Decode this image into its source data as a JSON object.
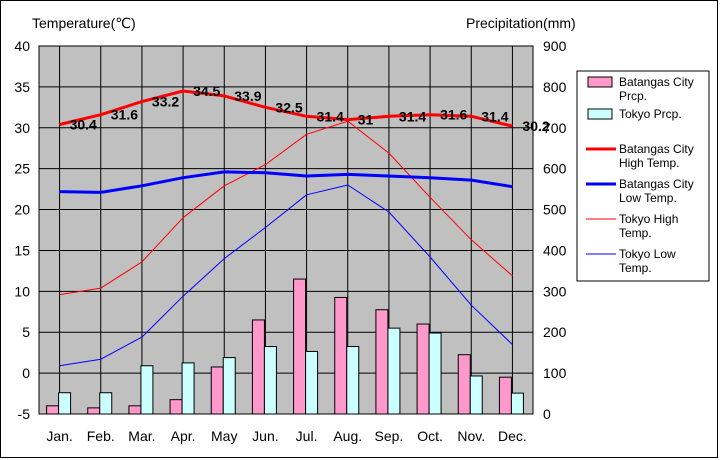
{
  "chart_data": {
    "type": "bar+line",
    "title": "",
    "left_axis_label": "Temperature(℃)",
    "right_axis_label": "Precipitation(mm)",
    "left_ylim": [
      -5,
      40
    ],
    "left_ticks": [
      -5,
      0,
      5,
      10,
      15,
      20,
      25,
      30,
      35,
      40
    ],
    "right_ylim": [
      0,
      900
    ],
    "right_ticks": [
      0,
      100,
      200,
      300,
      400,
      500,
      600,
      700,
      800,
      900
    ],
    "categories": [
      "Jan.",
      "Feb.",
      "Mar.",
      "Apr.",
      "May",
      "Jun.",
      "Jul.",
      "Aug.",
      "Sep.",
      "Oct.",
      "Nov.",
      "Dec."
    ],
    "bar_series": [
      {
        "name": "Batangas City Prcp.",
        "legend_lines": [
          "Batangas City",
          "Prcp."
        ],
        "color": "#ff99cc",
        "values": [
          20,
          15,
          20,
          35,
          115,
          230,
          330,
          285,
          255,
          220,
          145,
          90
        ]
      },
      {
        "name": "Tokyo Prcp.",
        "legend_lines": [
          "Tokyo Prcp."
        ],
        "color": "#ccffff",
        "values": [
          52,
          52,
          118,
          125,
          138,
          165,
          153,
          165,
          210,
          198,
          93,
          51
        ]
      }
    ],
    "line_series": [
      {
        "name": "Batangas City High Temp.",
        "legend_lines": [
          "Batangas City",
          "High Temp."
        ],
        "color": "#ff0000",
        "width": 3,
        "values": [
          30.4,
          31.6,
          33.2,
          34.5,
          33.9,
          32.5,
          31.4,
          31,
          31.4,
          31.6,
          31.4,
          30.2
        ],
        "labels": [
          "30.4",
          "31.6",
          "33.2",
          "34.5",
          "33.9",
          "32.5",
          "31.4",
          "31",
          "31.4",
          "31.6",
          "31.4",
          "30.2"
        ]
      },
      {
        "name": "Batangas City Low Temp.",
        "legend_lines": [
          "Batangas City",
          "Low Temp."
        ],
        "color": "#0000ff",
        "width": 3,
        "values": [
          22.2,
          22.1,
          22.9,
          23.9,
          24.6,
          24.5,
          24.1,
          24.3,
          24.1,
          23.9,
          23.6,
          22.8
        ]
      },
      {
        "name": "Tokyo High Temp.",
        "legend_lines": [
          "Tokyo High",
          "Temp."
        ],
        "color": "#ff0000",
        "width": 1,
        "values": [
          9.6,
          10.4,
          13.6,
          19.0,
          22.9,
          25.5,
          29.2,
          30.8,
          26.9,
          21.5,
          16.3,
          11.9
        ]
      },
      {
        "name": "Tokyo Low Temp.",
        "legend_lines": [
          "Tokyo Low",
          "Temp."
        ],
        "color": "#0000ff",
        "width": 1,
        "values": [
          0.9,
          1.7,
          4.4,
          9.4,
          14.0,
          17.8,
          21.8,
          23.0,
          19.7,
          14.2,
          8.3,
          3.5
        ]
      }
    ],
    "grid": true,
    "legend_position": "right"
  }
}
